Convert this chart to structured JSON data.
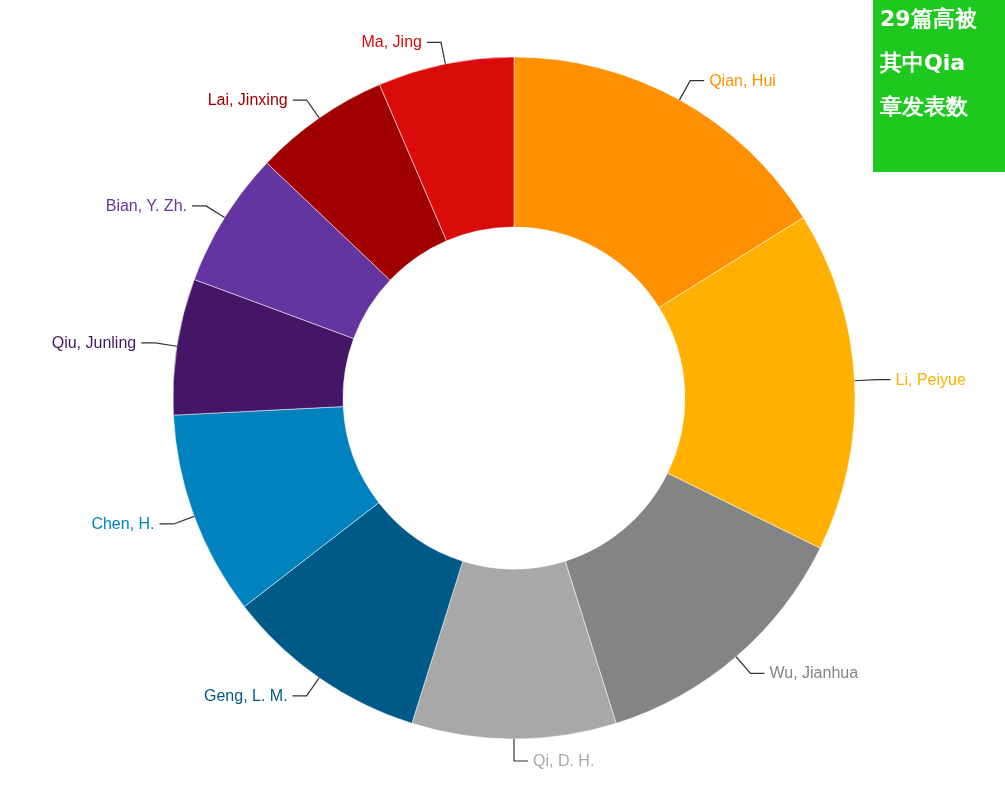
{
  "chart_data": {
    "type": "donut",
    "categories": [
      "Qian, Hui",
      "Li, Peiyue",
      "Wu, Jianhua",
      "Qi, D. H.",
      "Geng, L. M.",
      "Chen, H.",
      "Qiu, Junling",
      "Bian, Y. Zh.",
      "Lai, Jinxing",
      "Ma, Jing"
    ],
    "values": [
      16.13,
      16.13,
      12.9,
      9.68,
      9.68,
      9.68,
      6.45,
      6.45,
      6.45,
      6.45
    ],
    "colors": [
      "#ff9000",
      "#ffb000",
      "#848484",
      "#a8a8a8",
      "#005a87",
      "#0082be",
      "#451566",
      "#6434a0",
      "#a00000",
      "#d90b0b"
    ],
    "annotations": [
      "29篇高被",
      "其中Qia",
      "章发表数"
    ]
  }
}
